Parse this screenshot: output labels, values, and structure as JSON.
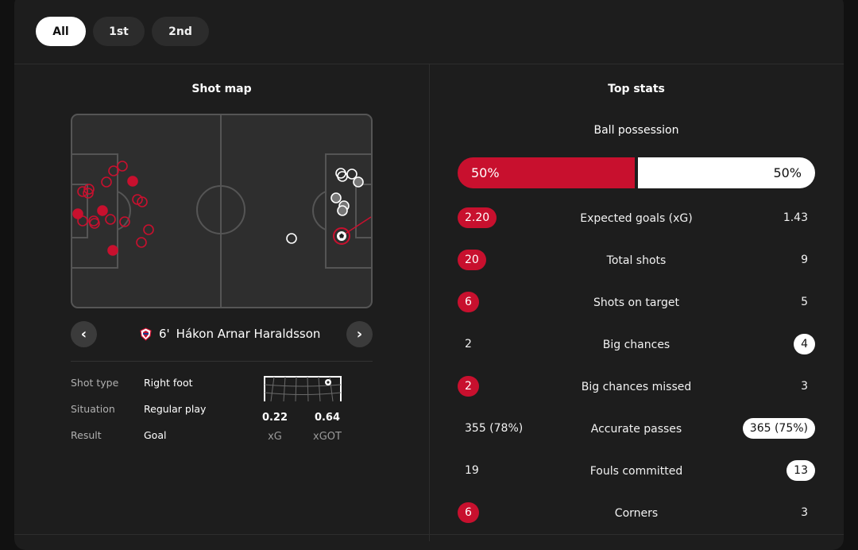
{
  "tabs": [
    {
      "label": "All",
      "active": true
    },
    {
      "label": "1st",
      "active": false
    },
    {
      "label": "2nd",
      "active": false
    }
  ],
  "shot_map": {
    "title": "Shot map",
    "player": {
      "minute": "6'",
      "name": "Hákon Arnar Haraldsson"
    },
    "details": [
      {
        "label": "Shot type",
        "value": "Right foot"
      },
      {
        "label": "Situation",
        "value": "Regular play"
      },
      {
        "label": "Result",
        "value": "Goal"
      }
    ],
    "xg": {
      "value": "0.22",
      "label": "xG"
    },
    "xgot": {
      "value": "0.64",
      "label": "xGOT"
    },
    "colors": {
      "home": "#c8102e",
      "away": "#ffffff",
      "pitch": "#2e2e2e",
      "lines": "#555555"
    }
  },
  "top_stats": {
    "title": "Top stats",
    "possession": {
      "label": "Ball possession",
      "home": "50%",
      "away": "50%",
      "home_fraction": 0.5
    },
    "rows": [
      {
        "label": "Expected goals (xG)",
        "home": "2.20",
        "away": "1.43",
        "highlight": "home"
      },
      {
        "label": "Total shots",
        "home": "20",
        "away": "9",
        "highlight": "home"
      },
      {
        "label": "Shots on target",
        "home": "6",
        "away": "5",
        "highlight": "home"
      },
      {
        "label": "Big chances",
        "home": "2",
        "away": "4",
        "highlight": "away"
      },
      {
        "label": "Big chances missed",
        "home": "2",
        "away": "3",
        "highlight": "home"
      },
      {
        "label": "Accurate passes",
        "home": "355 (78%)",
        "away": "365 (75%)",
        "highlight": "away"
      },
      {
        "label": "Fouls committed",
        "home": "19",
        "away": "13",
        "highlight": "away"
      },
      {
        "label": "Corners",
        "home": "6",
        "away": "3",
        "highlight": "home"
      }
    ]
  }
}
